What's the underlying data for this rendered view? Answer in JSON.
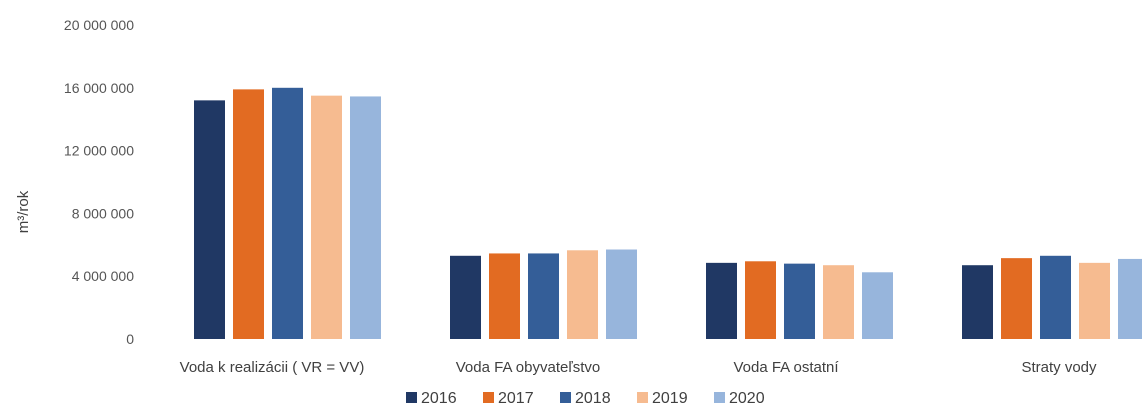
{
  "chart_data": {
    "type": "bar",
    "ylabel": "m³/rok",
    "ylim": [
      0,
      20000000
    ],
    "yticks": [
      {
        "value": 0,
        "label": "0"
      },
      {
        "value": 4000000,
        "label": "4 000 000"
      },
      {
        "value": 8000000,
        "label": "8 000 000"
      },
      {
        "value": 12000000,
        "label": "12 000 000"
      },
      {
        "value": 16000000,
        "label": "16 000 000"
      },
      {
        "value": 20000000,
        "label": "20 000 000"
      }
    ],
    "grid": false,
    "legend_position": "bottom",
    "categories": [
      "Voda k realizácii ( VR = VV)",
      "Voda FA obyvateľstvo",
      "Voda FA ostatní",
      "Straty vody"
    ],
    "series": [
      {
        "name": "2016",
        "color": "#203864",
        "values": [
          15200000,
          5300000,
          4850000,
          4700000
        ]
      },
      {
        "name": "2017",
        "color": "#E26B22",
        "values": [
          15900000,
          5450000,
          4950000,
          5150000
        ]
      },
      {
        "name": "2018",
        "color": "#345E98",
        "values": [
          16000000,
          5450000,
          4800000,
          5300000
        ]
      },
      {
        "name": "2019",
        "color": "#F6BB90",
        "values": [
          15500000,
          5650000,
          4700000,
          4850000
        ]
      },
      {
        "name": "2020",
        "color": "#97B5DC",
        "values": [
          15450000,
          5700000,
          4250000,
          5100000
        ]
      }
    ]
  }
}
